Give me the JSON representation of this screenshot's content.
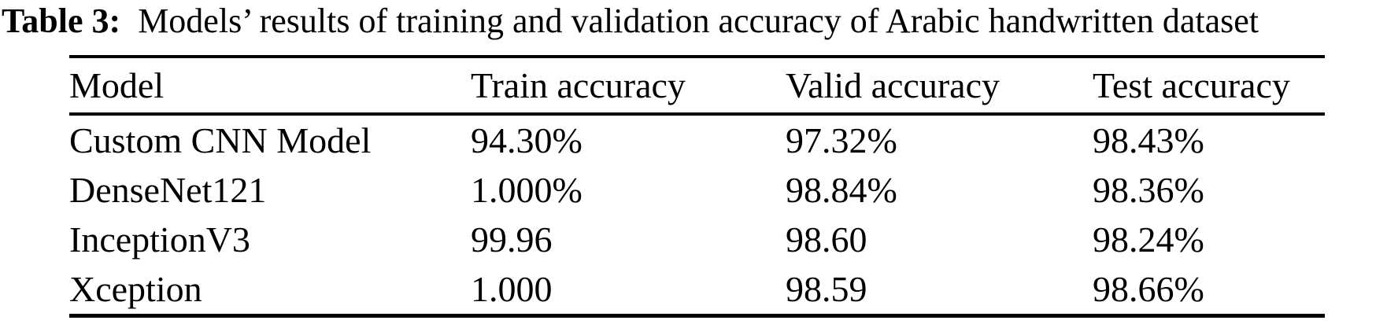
{
  "caption": {
    "label": "Table 3:",
    "text": "Models’ results of training and validation accuracy of Arabic handwritten dataset"
  },
  "table": {
    "columns": [
      "Model",
      "Train accuracy",
      "Valid accuracy",
      "Test accuracy"
    ],
    "rows": [
      [
        "Custom CNN Model",
        "94.30%",
        "97.32%",
        "98.43%"
      ],
      [
        "DenseNet121",
        "1.000%",
        "98.84%",
        "98.36%"
      ],
      [
        "InceptionV3",
        "99.96",
        "98.60",
        "98.24%"
      ],
      [
        "Xception",
        "1.000",
        "98.59",
        "98.66%"
      ]
    ]
  },
  "colors": {
    "text": "#000000",
    "background": "#ffffff",
    "rule": "#000000"
  }
}
